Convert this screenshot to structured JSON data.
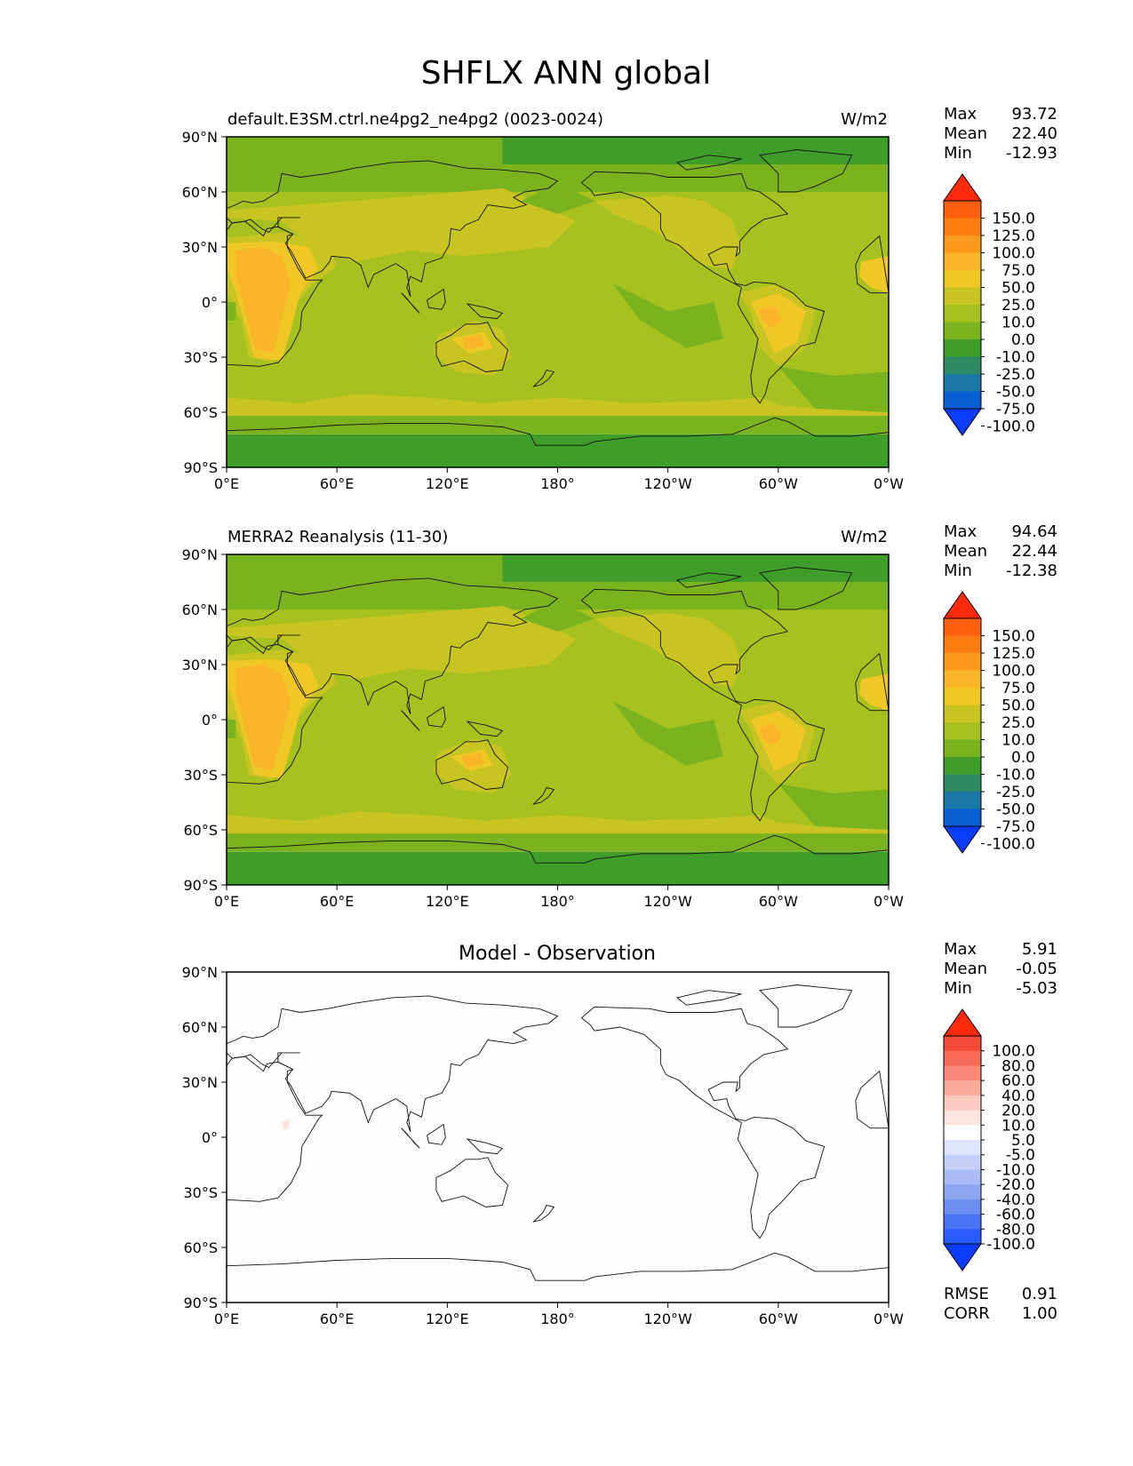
{
  "title": "SHFLX ANN global",
  "axes": {
    "lat_ticks": [
      "90°N",
      "60°N",
      "30°N",
      "0°",
      "30°S",
      "60°S",
      "90°S"
    ],
    "lon_ticks": [
      "0°E",
      "60°E",
      "120°E",
      "180°",
      "120°W",
      "60°W",
      "0°W"
    ]
  },
  "colors": {
    "abs_levels": [
      "#0a3cff",
      "#0a5fd2",
      "#1a78a8",
      "#2d8a64",
      "#3f9d2a",
      "#7bb31f",
      "#a7c11e",
      "#c8c421",
      "#f0c826",
      "#fbb528",
      "#fd9a1c",
      "#fd7d10",
      "#fd5f0e",
      "#ff2a0a"
    ],
    "diff_levels": [
      "#0a3cff",
      "#2a5bff",
      "#4a74f5",
      "#6b8ef0",
      "#8da7f2",
      "#a9bcf5",
      "#c4d0f7",
      "#dfe5fa",
      "#fdfdfd",
      "#fde4df",
      "#fccabf",
      "#fca99a",
      "#fb8878",
      "#f96a58",
      "#f44a37",
      "#ff2a0a"
    ]
  },
  "panels": [
    {
      "id": "test",
      "subtitle": "default.E3SM.ctrl.ne4pg2_ne4pg2 (0023-0024)",
      "units": "W/m2",
      "stats": [
        {
          "label": "Max",
          "value": "93.72"
        },
        {
          "label": "Mean",
          "value": "22.40"
        },
        {
          "label": "Min",
          "value": "-12.93"
        }
      ],
      "colorbar_ticks": [
        "150.0",
        "125.0",
        "100.0",
        "75.0",
        "50.0",
        "25.0",
        "10.0",
        "0.0",
        "-10.0",
        "-25.0",
        "-50.0",
        "-75.0",
        "-100.0"
      ]
    },
    {
      "id": "ref",
      "subtitle": "MERRA2 Reanalysis (11-30)",
      "units": "W/m2",
      "stats": [
        {
          "label": "Max",
          "value": "94.64"
        },
        {
          "label": "Mean",
          "value": "22.44"
        },
        {
          "label": "Min",
          "value": "-12.38"
        }
      ],
      "colorbar_ticks": [
        "150.0",
        "125.0",
        "100.0",
        "75.0",
        "50.0",
        "25.0",
        "10.0",
        "0.0",
        "-10.0",
        "-25.0",
        "-50.0",
        "-75.0",
        "-100.0"
      ]
    },
    {
      "id": "diff",
      "center_title": "Model - Observation",
      "stats": [
        {
          "label": "Max",
          "value": "5.91"
        },
        {
          "label": "Mean",
          "value": "-0.05"
        },
        {
          "label": "Min",
          "value": "-5.03"
        }
      ],
      "colorbar_ticks": [
        "100.0",
        "80.0",
        "60.0",
        "40.0",
        "20.0",
        "10.0",
        "5.0",
        "-5.0",
        "-10.0",
        "-20.0",
        "-40.0",
        "-60.0",
        "-80.0",
        "-100.0"
      ],
      "bottom_stats": [
        {
          "label": "RMSE",
          "value": "0.91"
        },
        {
          "label": "CORR",
          "value": "1.00"
        }
      ]
    }
  ],
  "chart_data": [
    {
      "type": "heatmap",
      "title": "default.E3SM.ctrl.ne4pg2_ne4pg2 (0023-0024)",
      "units": "W/m2",
      "xlabel": "",
      "ylabel": "",
      "xlim": [
        0,
        360
      ],
      "ylim": [
        -90,
        90
      ],
      "levels": [
        -100,
        -75,
        -50,
        -25,
        -10,
        0,
        10,
        25,
        50,
        75,
        100,
        125,
        150
      ],
      "max": 93.72,
      "mean": 22.4,
      "min": -12.93
    },
    {
      "type": "heatmap",
      "title": "MERRA2 Reanalysis (11-30)",
      "units": "W/m2",
      "xlabel": "",
      "ylabel": "",
      "xlim": [
        0,
        360
      ],
      "ylim": [
        -90,
        90
      ],
      "levels": [
        -100,
        -75,
        -50,
        -25,
        -10,
        0,
        10,
        25,
        50,
        75,
        100,
        125,
        150
      ],
      "max": 94.64,
      "mean": 22.44,
      "min": -12.38
    },
    {
      "type": "heatmap",
      "title": "Model - Observation",
      "xlabel": "",
      "ylabel": "",
      "xlim": [
        0,
        360
      ],
      "ylim": [
        -90,
        90
      ],
      "levels": [
        -100,
        -80,
        -60,
        -40,
        -20,
        -10,
        -5,
        5,
        10,
        20,
        40,
        60,
        80,
        100
      ],
      "max": 5.91,
      "mean": -0.05,
      "min": -5.03,
      "rmse": 0.91,
      "corr": 1.0
    }
  ]
}
